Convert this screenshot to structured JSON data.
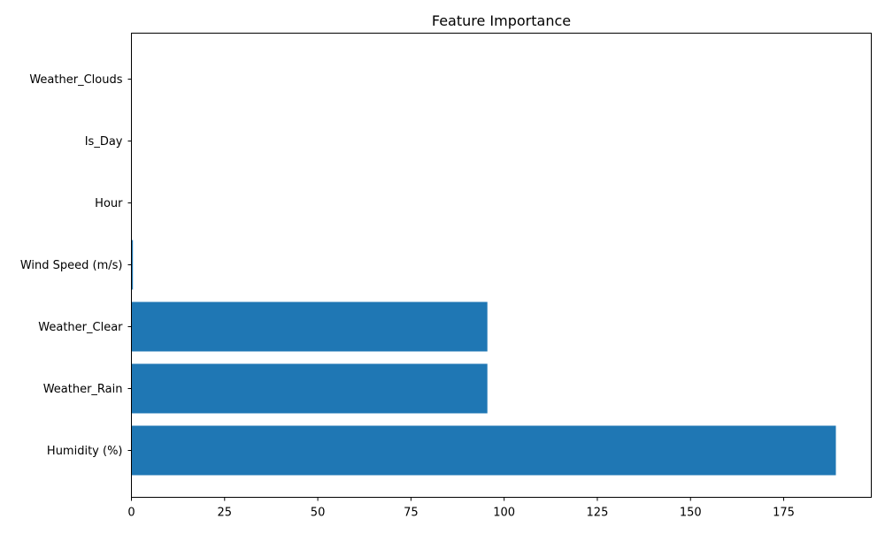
{
  "chart_data": {
    "type": "bar",
    "orientation": "horizontal",
    "title": "Feature Importance",
    "xlabel": "",
    "ylabel": "",
    "categories": [
      "Humidity (%)",
      "Weather_Rain",
      "Weather_Clear",
      "Wind Speed (m/s)",
      "Hour",
      "Is_Day",
      "Weather_Clouds"
    ],
    "values": [
      189.0,
      95.5,
      95.5,
      0.4,
      0.0,
      0.0,
      0.0
    ],
    "xlim": [
      0,
      198.5
    ],
    "xticks": [
      "0",
      "25",
      "50",
      "75",
      "100",
      "125",
      "150",
      "175"
    ],
    "xtick_values": [
      0,
      25,
      50,
      75,
      100,
      125,
      150,
      175
    ],
    "grid": false,
    "legend": "none",
    "colors": {
      "bar": "#1f77b4",
      "axis": "#000000",
      "background": "#ffffff"
    }
  }
}
